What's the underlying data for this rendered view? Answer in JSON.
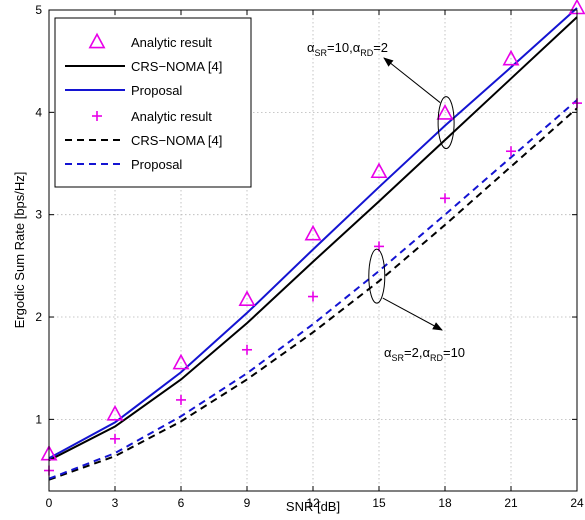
{
  "chart_data": {
    "type": "line",
    "xlabel": "SNR [dB]",
    "ylabel": "Ergodic Sum Rate [bps/Hz]",
    "xlim": [
      0,
      24
    ],
    "ylim": [
      0.3,
      5
    ],
    "x_ticks": [
      0,
      3,
      6,
      9,
      12,
      15,
      18,
      21,
      24
    ],
    "y_ticks": [
      1,
      2,
      3,
      4,
      5
    ],
    "grid": true,
    "legend_position": "top-left",
    "series": [
      {
        "name": "Analytic result",
        "group": "10_2",
        "style": "triangle",
        "color": "#e800e8",
        "x": [
          0,
          3,
          6,
          9,
          12,
          15,
          18,
          21,
          24
        ],
        "y": [
          0.66,
          1.05,
          1.55,
          2.17,
          2.81,
          3.42,
          3.99,
          4.52,
          5.02
        ]
      },
      {
        "name": "CRS−NOMA [4]",
        "group": "10_2",
        "style": "solid",
        "color": "#000000",
        "x": [
          0,
          3,
          6,
          9,
          12,
          15,
          18,
          21,
          24
        ],
        "y": [
          0.6,
          0.93,
          1.39,
          1.94,
          2.54,
          3.13,
          3.73,
          4.33,
          4.93
        ]
      },
      {
        "name": "Proposal",
        "group": "10_2",
        "style": "solid",
        "color": "#1414d2",
        "x": [
          0,
          3,
          6,
          9,
          12,
          15,
          18,
          21,
          24
        ],
        "y": [
          0.62,
          0.97,
          1.46,
          2.04,
          2.66,
          3.27,
          3.87,
          4.44,
          5.02
        ]
      },
      {
        "name": "Analytic result",
        "group": "2_10",
        "style": "plus",
        "color": "#e800e8",
        "x": [
          0,
          3,
          6,
          9,
          12,
          15,
          18,
          21,
          24
        ],
        "y": [
          0.5,
          0.81,
          1.19,
          1.68,
          2.2,
          2.69,
          3.16,
          3.62,
          4.09
        ]
      },
      {
        "name": "CRS−NOMA [4]",
        "group": "2_10",
        "style": "dashed",
        "color": "#000000",
        "x": [
          0,
          3,
          6,
          9,
          12,
          15,
          18,
          21,
          24
        ],
        "y": [
          0.41,
          0.64,
          0.98,
          1.39,
          1.85,
          2.35,
          2.9,
          3.47,
          4.04
        ]
      },
      {
        "name": "Proposal",
        "group": "2_10",
        "style": "dashed",
        "color": "#1414d2",
        "x": [
          0,
          3,
          6,
          9,
          12,
          15,
          18,
          21,
          24
        ],
        "y": [
          0.42,
          0.67,
          1.03,
          1.45,
          1.93,
          2.45,
          3.0,
          3.56,
          4.12
        ]
      }
    ],
    "annotations": [
      {
        "alpha": "α",
        "sub1": "SR",
        "eq1": "=10,",
        "alpha2": "α",
        "sub2": "RD",
        "eq2": "=2"
      },
      {
        "alpha": "α",
        "sub1": "SR",
        "eq1": "=2,",
        "alpha2": "α",
        "sub2": "RD",
        "eq2": "=10"
      }
    ]
  }
}
